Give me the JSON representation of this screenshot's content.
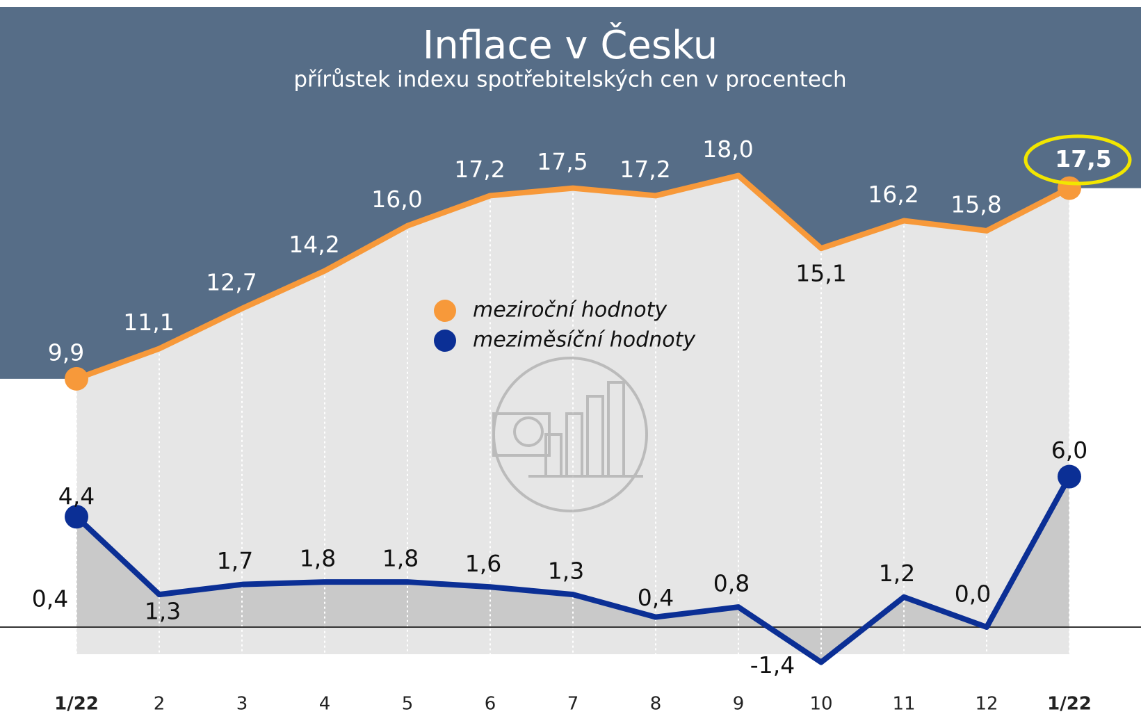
{
  "chart_data": {
    "type": "line",
    "title": "Inflace v Česku",
    "subtitle": "přírůstek indexu spotřebitelských cen v procentech",
    "categories": [
      "1/22",
      "2",
      "3",
      "4",
      "5",
      "6",
      "7",
      "8",
      "9",
      "10",
      "11",
      "12",
      "1/22"
    ],
    "series": [
      {
        "name": "meziroční hodnoty",
        "color": "#f7993a",
        "values": [
          9.9,
          11.1,
          12.7,
          14.2,
          16.0,
          17.2,
          17.5,
          17.2,
          18.0,
          15.1,
          16.2,
          15.8,
          17.5
        ],
        "value_labels": [
          "9,9",
          "11,1",
          "12,7",
          "14,2",
          "16,0",
          "17,2",
          "17,5",
          "17,2",
          "18,0",
          "15,1",
          "16,2",
          "15,8",
          "17,5"
        ]
      },
      {
        "name": "meziměsíční hodnoty",
        "color": "#0b2f95",
        "values": [
          4.4,
          1.3,
          1.7,
          1.8,
          1.8,
          1.6,
          1.3,
          0.4,
          0.8,
          -1.4,
          1.2,
          0.0,
          6.0
        ],
        "value_labels": [
          "4,4",
          "1,3",
          "1,7",
          "1,8",
          "1,8",
          "1,6",
          "1,3",
          "0,4",
          "0,8",
          "-1,4",
          "1,2",
          "0,0",
          "6,0"
        ]
      }
    ],
    "annotations": [
      "0,4"
    ],
    "ylim": [
      -2.3,
      25
    ],
    "grid": false
  }
}
